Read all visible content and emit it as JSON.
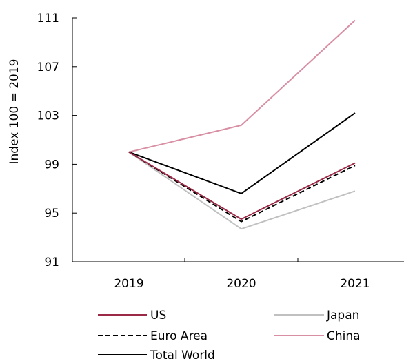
{
  "chart_data": {
    "type": "line",
    "title": "",
    "xlabel": "",
    "ylabel": "Index 100 = 2019",
    "categories": [
      "2019",
      "2020",
      "2021"
    ],
    "ylim": [
      91,
      111
    ],
    "yticks": [
      91,
      95,
      99,
      103,
      107,
      111
    ],
    "grid": false,
    "legend_position": "bottom",
    "series": [
      {
        "name": "US",
        "values": [
          100.0,
          94.5,
          99.1
        ],
        "color": "#9b2a47",
        "dash": "solid"
      },
      {
        "name": "Japan",
        "values": [
          100.0,
          93.7,
          96.8
        ],
        "color": "#c0c0c0",
        "dash": "solid"
      },
      {
        "name": "Euro Area",
        "values": [
          100.0,
          94.3,
          98.9
        ],
        "color": "#000000",
        "dash": "dashed"
      },
      {
        "name": "China",
        "values": [
          100.0,
          102.2,
          110.8
        ],
        "color": "#d88fa4",
        "dash": "solid"
      },
      {
        "name": "Total World",
        "values": [
          100.0,
          96.6,
          103.2
        ],
        "color": "#000000",
        "dash": "solid"
      }
    ]
  }
}
